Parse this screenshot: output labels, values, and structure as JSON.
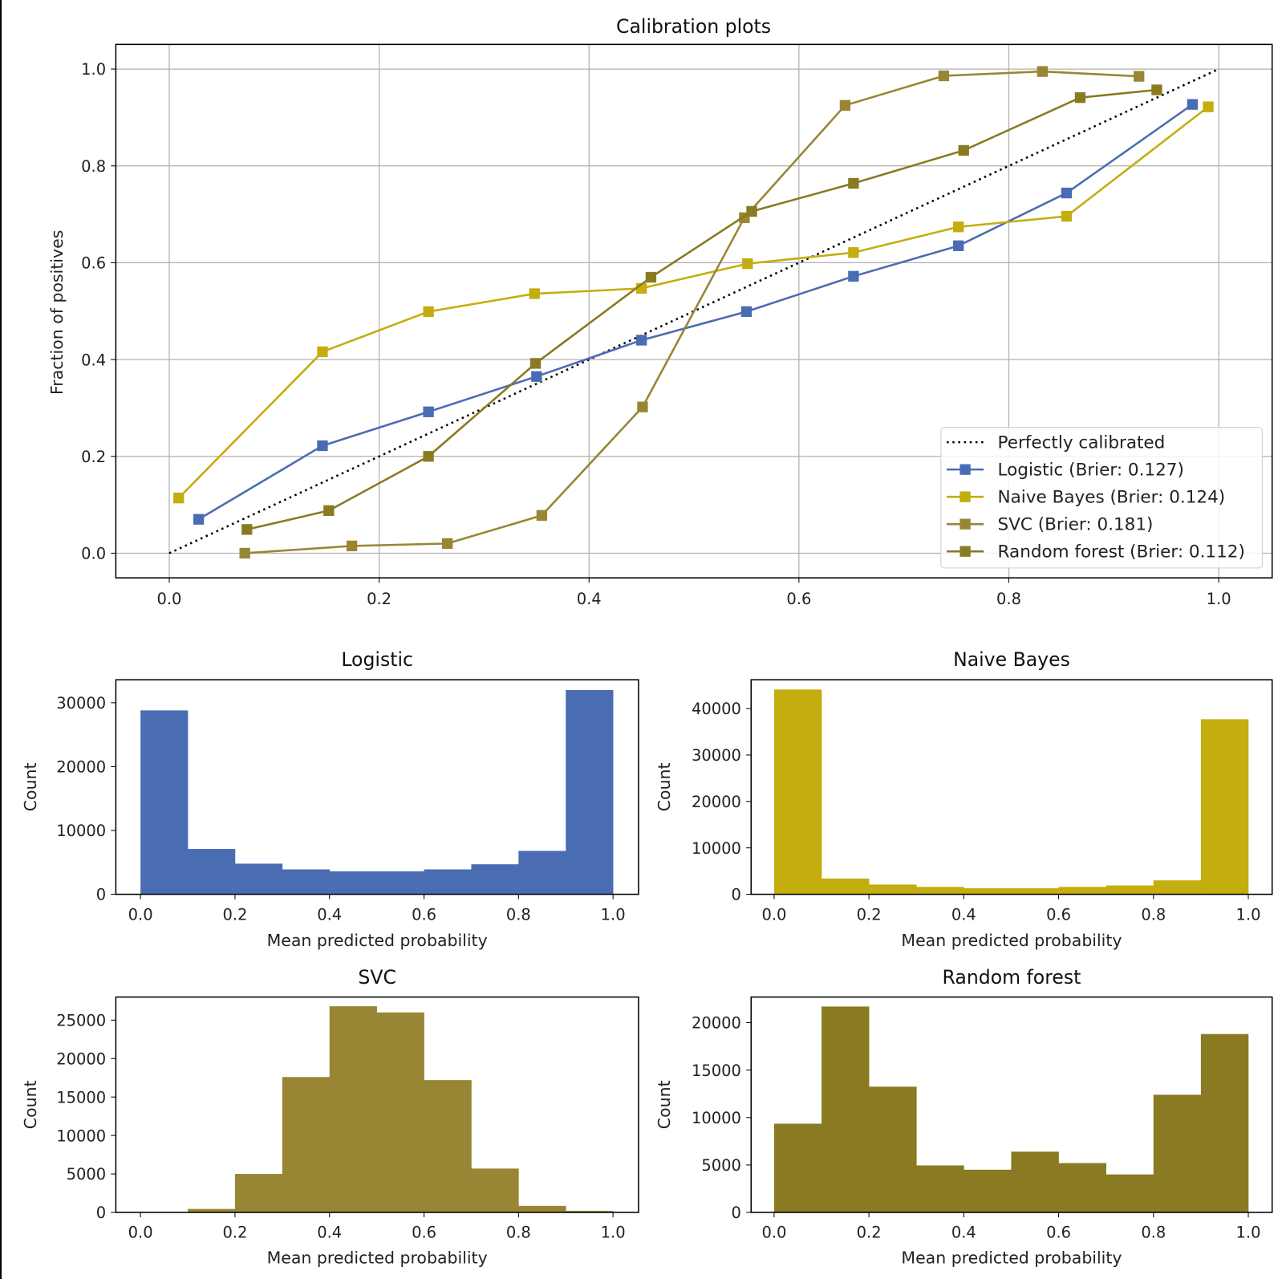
{
  "chart_data": [
    {
      "type": "line",
      "title": "Calibration plots",
      "xlabel": "",
      "ylabel": "Fraction of positives",
      "xlim": [
        -0.05,
        1.05
      ],
      "ylim": [
        -0.05,
        1.05
      ],
      "xticks": [
        "0.0",
        "0.2",
        "0.4",
        "0.6",
        "0.8",
        "1.0"
      ],
      "yticks": [
        "0.0",
        "0.2",
        "0.4",
        "0.6",
        "0.8",
        "1.0"
      ],
      "grid": true,
      "legend_position": "lower-right",
      "reference": {
        "name": "Perfectly calibrated",
        "x": [
          0,
          1
        ],
        "y": [
          0,
          1
        ],
        "color": "#000000",
        "style": "dotted"
      },
      "series": [
        {
          "name": "Logistic (Brier: 0.127)",
          "color": "#4a6cb3",
          "x": [
            0.028,
            0.146,
            0.247,
            0.35,
            0.45,
            0.55,
            0.652,
            0.752,
            0.855,
            0.975
          ],
          "y": [
            0.07,
            0.222,
            0.292,
            0.365,
            0.44,
            0.499,
            0.572,
            0.635,
            0.744,
            0.927
          ]
        },
        {
          "name": "Naive Bayes (Brier: 0.124)",
          "color": "#c4ad0e",
          "x": [
            0.009,
            0.146,
            0.247,
            0.348,
            0.45,
            0.551,
            0.652,
            0.752,
            0.855,
            0.99
          ],
          "y": [
            0.114,
            0.416,
            0.499,
            0.536,
            0.547,
            0.598,
            0.621,
            0.674,
            0.696,
            0.922
          ]
        },
        {
          "name": "SVC (Brier: 0.181)",
          "color": "#988634",
          "x": [
            0.072,
            0.174,
            0.265,
            0.355,
            0.451,
            0.548,
            0.644,
            0.738,
            0.832,
            0.924
          ],
          "y": [
            0.0,
            0.015,
            0.02,
            0.078,
            0.302,
            0.693,
            0.925,
            0.986,
            0.995,
            0.985
          ]
        },
        {
          "name": "Random forest (Brier: 0.112)",
          "color": "#8a7a21",
          "x": [
            0.074,
            0.152,
            0.247,
            0.349,
            0.459,
            0.555,
            0.652,
            0.757,
            0.868,
            0.941
          ],
          "y": [
            0.049,
            0.088,
            0.2,
            0.392,
            0.57,
            0.706,
            0.764,
            0.832,
            0.941,
            0.957
          ]
        }
      ]
    },
    {
      "type": "bar",
      "title": "Logistic",
      "xlabel": "Mean predicted probability",
      "ylabel": "Count",
      "color": "#4a6cb3",
      "bin_edges": [
        0,
        0.1,
        0.2,
        0.3,
        0.4,
        0.5,
        0.6,
        0.7,
        0.8,
        0.9,
        1.0
      ],
      "values": [
        28800,
        7100,
        4800,
        3900,
        3600,
        3600,
        3900,
        4700,
        6800,
        32000
      ],
      "xticks": [
        "0.0",
        "0.2",
        "0.4",
        "0.6",
        "0.8",
        "1.0"
      ],
      "yticks": [
        "0",
        "10000",
        "20000",
        "30000"
      ],
      "ylim": [
        0,
        33600
      ]
    },
    {
      "type": "bar",
      "title": "Naive Bayes",
      "xlabel": "Mean predicted probability",
      "ylabel": "Count",
      "color": "#c4ad0e",
      "bin_edges": [
        0,
        0.1,
        0.2,
        0.3,
        0.4,
        0.5,
        0.6,
        0.7,
        0.8,
        0.9,
        1.0
      ],
      "values": [
        44100,
        3400,
        2100,
        1600,
        1300,
        1300,
        1600,
        1900,
        3000,
        37700
      ],
      "xticks": [
        "0.0",
        "0.2",
        "0.4",
        "0.6",
        "0.8",
        "1.0"
      ],
      "yticks": [
        "0",
        "10000",
        "20000",
        "30000",
        "40000"
      ],
      "ylim": [
        0,
        46200
      ]
    },
    {
      "type": "bar",
      "title": "SVC",
      "xlabel": "Mean predicted probability",
      "ylabel": "Count",
      "color": "#988634",
      "bin_edges": [
        0,
        0.1,
        0.2,
        0.3,
        0.4,
        0.5,
        0.6,
        0.7,
        0.8,
        0.9,
        1.0
      ],
      "values": [
        0,
        450,
        5000,
        17600,
        26800,
        26000,
        17200,
        5700,
        850,
        200
      ],
      "xticks": [
        "0.0",
        "0.2",
        "0.4",
        "0.6",
        "0.8",
        "1.0"
      ],
      "yticks": [
        "0",
        "5000",
        "10000",
        "15000",
        "20000",
        "25000"
      ],
      "ylim": [
        0,
        28000
      ]
    },
    {
      "type": "bar",
      "title": "Random forest",
      "xlabel": "Mean predicted probability",
      "ylabel": "Count",
      "color": "#8a7a21",
      "bin_edges": [
        0,
        0.1,
        0.2,
        0.3,
        0.4,
        0.5,
        0.6,
        0.7,
        0.8,
        0.9,
        1.0
      ],
      "values": [
        9350,
        21700,
        13250,
        4950,
        4500,
        6400,
        5200,
        4000,
        12400,
        18800
      ],
      "xticks": [
        "0.0",
        "0.2",
        "0.4",
        "0.6",
        "0.8",
        "1.0"
      ],
      "yticks": [
        "0",
        "5000",
        "10000",
        "15000",
        "20000"
      ],
      "ylim": [
        0,
        22700
      ]
    }
  ]
}
